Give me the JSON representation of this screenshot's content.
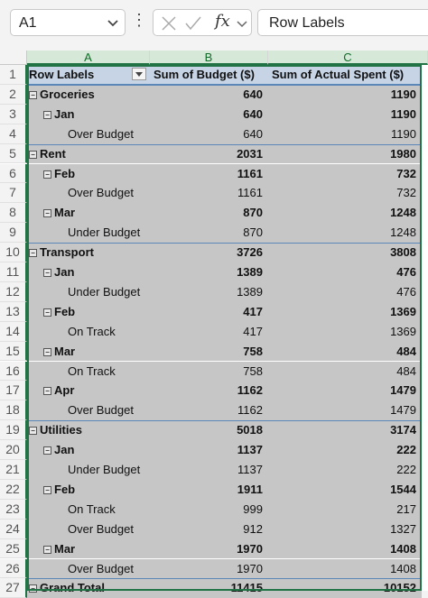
{
  "formula_bar": {
    "name_box": "A1",
    "formula": "Row Labels",
    "fx_label": "fx"
  },
  "columns": [
    "A",
    "B",
    "C"
  ],
  "pivot": {
    "headers": [
      "Row Labels",
      "Sum of Budget ($)",
      "Sum of Actual Spent ($)"
    ],
    "rows": [
      {
        "n": "1",
        "label": "Row Labels",
        "b": "Sum of Budget ($)",
        "c": "Sum of Actual Spent ($)",
        "lvl": "hdr"
      },
      {
        "n": "2",
        "label": "Groceries",
        "b": "640",
        "c": "1190",
        "lvl": "0"
      },
      {
        "n": "3",
        "label": "Jan",
        "b": "640",
        "c": "1190",
        "lvl": "1"
      },
      {
        "n": "4",
        "label": "Over Budget",
        "b": "640",
        "c": "1190",
        "lvl": "2"
      },
      {
        "n": "5",
        "label": "Rent",
        "b": "2031",
        "c": "1980",
        "lvl": "0"
      },
      {
        "n": "6",
        "label": "Feb",
        "b": "1161",
        "c": "732",
        "lvl": "1"
      },
      {
        "n": "7",
        "label": "Over Budget",
        "b": "1161",
        "c": "732",
        "lvl": "2"
      },
      {
        "n": "8",
        "label": "Mar",
        "b": "870",
        "c": "1248",
        "lvl": "1"
      },
      {
        "n": "9",
        "label": "Under Budget",
        "b": "870",
        "c": "1248",
        "lvl": "2"
      },
      {
        "n": "10",
        "label": "Transport",
        "b": "3726",
        "c": "3808",
        "lvl": "0"
      },
      {
        "n": "11",
        "label": "Jan",
        "b": "1389",
        "c": "476",
        "lvl": "1"
      },
      {
        "n": "12",
        "label": "Under Budget",
        "b": "1389",
        "c": "476",
        "lvl": "2"
      },
      {
        "n": "13",
        "label": "Feb",
        "b": "417",
        "c": "1369",
        "lvl": "1"
      },
      {
        "n": "14",
        "label": "On Track",
        "b": "417",
        "c": "1369",
        "lvl": "2"
      },
      {
        "n": "15",
        "label": "Mar",
        "b": "758",
        "c": "484",
        "lvl": "1"
      },
      {
        "n": "16",
        "label": "On Track",
        "b": "758",
        "c": "484",
        "lvl": "2"
      },
      {
        "n": "17",
        "label": "Apr",
        "b": "1162",
        "c": "1479",
        "lvl": "1"
      },
      {
        "n": "18",
        "label": "Over Budget",
        "b": "1162",
        "c": "1479",
        "lvl": "2"
      },
      {
        "n": "19",
        "label": "Utilities",
        "b": "5018",
        "c": "3174",
        "lvl": "0"
      },
      {
        "n": "20",
        "label": "Jan",
        "b": "1137",
        "c": "222",
        "lvl": "1"
      },
      {
        "n": "21",
        "label": "Under Budget",
        "b": "1137",
        "c": "222",
        "lvl": "2"
      },
      {
        "n": "22",
        "label": "Feb",
        "b": "1911",
        "c": "1544",
        "lvl": "1"
      },
      {
        "n": "23",
        "label": "On Track",
        "b": "999",
        "c": "217",
        "lvl": "2"
      },
      {
        "n": "24",
        "label": "Over Budget",
        "b": "912",
        "c": "1327",
        "lvl": "2"
      },
      {
        "n": "25",
        "label": "Mar",
        "b": "1970",
        "c": "1408",
        "lvl": "1"
      },
      {
        "n": "26",
        "label": "Over Budget",
        "b": "1970",
        "c": "1408",
        "lvl": "2"
      },
      {
        "n": "27",
        "label": "Grand Total",
        "b": "11415",
        "c": "10152",
        "lvl": "0"
      }
    ]
  },
  "colors": {
    "accent": "#217346",
    "pivot_fill": "#c6c6c6",
    "header_fill": "#c6d4e6"
  }
}
